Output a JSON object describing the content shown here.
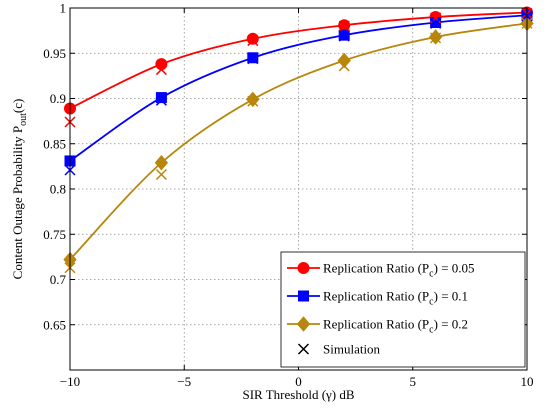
{
  "chart_data": {
    "type": "line",
    "xlabel": "SIR Threshold (γ) dB",
    "ylabel_main": "Content Outage Probability  P",
    "ylabel_sub": "out",
    "ylabel_tail": "(c)",
    "xlim": [
      -10,
      10
    ],
    "ylim": [
      0.6,
      1.0
    ],
    "x_ticks": [
      -10,
      -5,
      0,
      5,
      10
    ],
    "x_tick_labels": [
      "−10",
      "−5",
      "0",
      "5",
      "10"
    ],
    "y_ticks": [
      0.65,
      0.7,
      0.75,
      0.8,
      0.85,
      0.9,
      0.95,
      1.0
    ],
    "y_tick_labels": [
      "0.65",
      "0.7",
      "0.75",
      "0.8",
      "0.85",
      "0.9",
      "0.95",
      "1"
    ],
    "grid": true,
    "legend_position": "bottom-right",
    "series": [
      {
        "name_prefix": "Replication Ratio (P",
        "name_sub": "c",
        "name_suffix": ") = 0.05",
        "color": "#ff0000",
        "marker": "circle",
        "x": [
          -10,
          -6,
          -2,
          2,
          6,
          10
        ],
        "analysis": [
          0.889,
          0.938,
          0.966,
          0.981,
          0.99,
          0.995
        ],
        "simulation": [
          0.874,
          0.932,
          0.964,
          0.98,
          0.989,
          0.994
        ]
      },
      {
        "name_prefix": "Replication Ratio (P",
        "name_sub": "c",
        "name_suffix": ") = 0.1",
        "color": "#0000ff",
        "marker": "square",
        "x": [
          -10,
          -6,
          -2,
          2,
          6,
          10
        ],
        "analysis": [
          0.831,
          0.901,
          0.945,
          0.97,
          0.984,
          0.992
        ],
        "simulation": [
          0.821,
          0.898,
          0.944,
          0.969,
          0.983,
          0.991
        ]
      },
      {
        "name_prefix": "Replication Ratio (P",
        "name_sub": "c",
        "name_suffix": ") = 0.2",
        "color": "#b8860b",
        "marker": "diamond",
        "x": [
          -10,
          -6,
          -2,
          2,
          6,
          10
        ],
        "analysis": [
          0.722,
          0.829,
          0.899,
          0.942,
          0.968,
          0.983
        ],
        "simulation": [
          0.713,
          0.816,
          0.897,
          0.936,
          0.967,
          0.983
        ]
      }
    ],
    "simulation_legend": "Simulation"
  }
}
